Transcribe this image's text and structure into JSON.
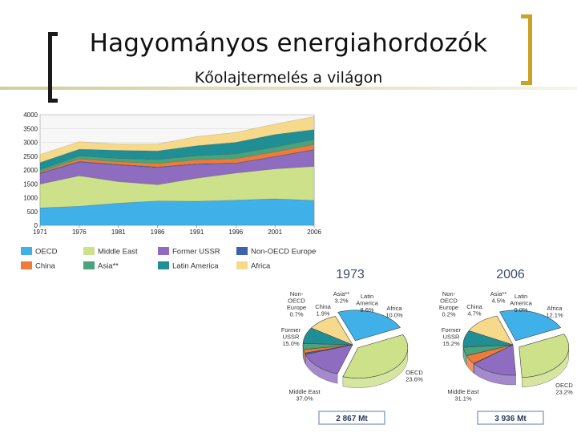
{
  "slide": {
    "title": "Hagyományos energiahordozók",
    "subtitle": "Kőolajtermelés a világon"
  },
  "chart_data": [
    {
      "type": "area",
      "stacked": true,
      "title": "",
      "xlabel": "",
      "ylabel": "",
      "x": [
        1971,
        1976,
        1981,
        1986,
        1991,
        1996,
        2001,
        2006
      ],
      "x_tick_labels": [
        "1971",
        "1976",
        "1981",
        "1986",
        "1991",
        "1996",
        "2001",
        "2006"
      ],
      "y_ticks": [
        0,
        500,
        1000,
        1500,
        2000,
        2500,
        3000,
        3500,
        4000
      ],
      "y_tick_labels": [
        "0",
        "500",
        "1000",
        "1500",
        "2000",
        "2500",
        "3000",
        "3500",
        "4000"
      ],
      "ylim": [
        0,
        4000
      ],
      "legend_position": "bottom",
      "series": [
        {
          "name": "OECD",
          "color": "#3fb0e8",
          "values": [
            630,
            690,
            800,
            880,
            870,
            910,
            960,
            900
          ]
        },
        {
          "name": "Middle East",
          "color": "#cde08a",
          "values": [
            860,
            1100,
            780,
            590,
            830,
            980,
            1080,
            1230
          ]
        },
        {
          "name": "Former USSR",
          "color": "#8e6cc0",
          "values": [
            380,
            500,
            600,
            620,
            510,
            350,
            440,
            600
          ]
        },
        {
          "name": "Non-OECD Europe",
          "color": "#3a62b0",
          "values": [
            20,
            20,
            20,
            20,
            15,
            10,
            10,
            10
          ]
        },
        {
          "name": "China",
          "color": "#f07a3a",
          "values": [
            40,
            90,
            100,
            130,
            140,
            160,
            165,
            185
          ]
        },
        {
          "name": "Asia**",
          "color": "#4aa37a",
          "values": [
            80,
            110,
            120,
            140,
            150,
            170,
            175,
            180
          ]
        },
        {
          "name": "Latin America",
          "color": "#1f8f95",
          "values": [
            260,
            240,
            290,
            310,
            360,
            420,
            450,
            355
          ]
        },
        {
          "name": "Africa",
          "color": "#f6d98a",
          "values": [
            290,
            270,
            230,
            250,
            330,
            360,
            380,
            470
          ]
        }
      ]
    },
    {
      "type": "pie",
      "title": "1973",
      "total_label": "2 867 Mt",
      "slices": [
        {
          "label": "OECD",
          "value": 23.6,
          "value_label": "23.6%",
          "color": "#3fb0e8"
        },
        {
          "label": "Middle East",
          "value": 37.0,
          "value_label": "37.0%",
          "color": "#cde08a"
        },
        {
          "label": "Former USSR",
          "value": 15.0,
          "value_label": "15.0%",
          "color": "#8e6cc0"
        },
        {
          "label": "Non-OECD Europe",
          "value": 0.7,
          "value_label": "0.7%",
          "color": "#3a62b0"
        },
        {
          "label": "China",
          "value": 1.9,
          "value_label": "1.9%",
          "color": "#f07a3a"
        },
        {
          "label": "Asia**",
          "value": 3.2,
          "value_label": "3.2%",
          "color": "#4aa37a"
        },
        {
          "label": "Latin America",
          "value": 8.6,
          "value_label": "8.6%",
          "color": "#1f8f95"
        },
        {
          "label": "Africa",
          "value": 10.0,
          "value_label": "10.0%",
          "color": "#f6d98a"
        }
      ]
    },
    {
      "type": "pie",
      "title": "2006",
      "total_label": "3 936 Mt",
      "slices": [
        {
          "label": "OECD",
          "value": 23.2,
          "value_label": "23.2%",
          "color": "#3fb0e8"
        },
        {
          "label": "Middle East",
          "value": 31.1,
          "value_label": "31.1%",
          "color": "#cde08a"
        },
        {
          "label": "Former USSR",
          "value": 15.2,
          "value_label": "15.2%",
          "color": "#8e6cc0"
        },
        {
          "label": "Non-OECD Europe",
          "value": 0.2,
          "value_label": "0.2%",
          "color": "#3a62b0"
        },
        {
          "label": "China",
          "value": 4.7,
          "value_label": "4.7%",
          "color": "#f07a3a"
        },
        {
          "label": "Asia**",
          "value": 4.5,
          "value_label": "4.5%",
          "color": "#4aa37a"
        },
        {
          "label": "Latin America",
          "value": 9.0,
          "value_label": "9.0%",
          "color": "#1f8f95"
        },
        {
          "label": "Africa",
          "value": 12.1,
          "value_label": "12.1%",
          "color": "#f6d98a"
        }
      ]
    }
  ],
  "legend": [
    {
      "label": "OECD",
      "color": "#3fb0e8"
    },
    {
      "label": "Middle East",
      "color": "#cde08a"
    },
    {
      "label": "Former USSR",
      "color": "#8e6cc0"
    },
    {
      "label": "Non-OECD Europe",
      "color": "#3a62b0"
    },
    {
      "label": "China",
      "color": "#f07a3a"
    },
    {
      "label": "Asia**",
      "color": "#4aa37a"
    },
    {
      "label": "Latin America",
      "color": "#1f8f95"
    },
    {
      "label": "Africa",
      "color": "#f6d98a"
    }
  ],
  "pie_labels": {
    "pie_1973": {
      "non_oecd_europe": [
        "Non-",
        "OECD",
        "Europe",
        "0.7%"
      ],
      "china": [
        "China",
        "1.9%"
      ],
      "asia": [
        "Asia**",
        "3.2%"
      ],
      "latin_america": [
        "Latin",
        "America",
        "8.6%"
      ],
      "africa": [
        "Africa",
        "10.0%"
      ],
      "former_ussr": [
        "Former",
        "USSR",
        "15.0%"
      ],
      "oecd": [
        "OECD",
        "23.6%"
      ],
      "middle_east": [
        "Middle East",
        "37.0%"
      ]
    },
    "pie_2006": {
      "non_oecd_europe": [
        "Non-",
        "OECD",
        "Europe",
        "0.2%"
      ],
      "china": [
        "China",
        "4.7%"
      ],
      "asia": [
        "Asia**",
        "4.5%"
      ],
      "latin_america": [
        "Latin",
        "America",
        "9.0%"
      ],
      "africa": [
        "Africa",
        "12.1%"
      ],
      "former_ussr": [
        "Former",
        "USSR",
        "15.2%"
      ],
      "oecd": [
        "OECD",
        "23.2%"
      ],
      "middle_east": [
        "Middle East",
        "31.1%"
      ]
    }
  }
}
